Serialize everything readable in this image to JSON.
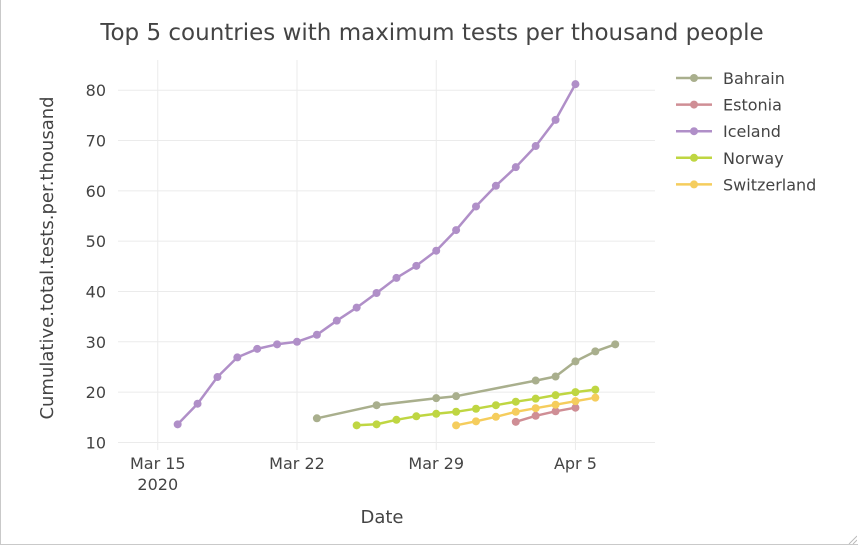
{
  "chart_data": {
    "type": "line",
    "title": "Top 5 countries with maximum tests per thousand people",
    "xlabel": "Date",
    "ylabel": "Cumulative.total.tests.per.thousand",
    "x_ticks": [
      {
        "date": "2020-03-15",
        "label": "Mar 15",
        "sublabel": "2020"
      },
      {
        "date": "2020-03-22",
        "label": "Mar 22"
      },
      {
        "date": "2020-03-29",
        "label": "Mar 29"
      },
      {
        "date": "2020-04-05",
        "label": "Apr 5"
      }
    ],
    "y_ticks": [
      10,
      20,
      30,
      40,
      50,
      60,
      70,
      80
    ],
    "xlim": [
      "2020-03-13",
      "2020-04-09"
    ],
    "ylim": [
      8.5,
      86
    ],
    "grid": true,
    "legend_position": "right",
    "series": [
      {
        "name": "Bahrain",
        "color": "#a9af8d",
        "points": [
          [
            "2020-03-23",
            14.8
          ],
          [
            "2020-03-26",
            17.4
          ],
          [
            "2020-03-29",
            18.8
          ],
          [
            "2020-03-30",
            19.2
          ],
          [
            "2020-04-03",
            22.3
          ],
          [
            "2020-04-04",
            23.1
          ],
          [
            "2020-04-05",
            26.1
          ],
          [
            "2020-04-06",
            28.1
          ],
          [
            "2020-04-07",
            29.5
          ]
        ]
      },
      {
        "name": "Estonia",
        "color": "#cf8e95",
        "points": [
          [
            "2020-04-02",
            14.1
          ],
          [
            "2020-04-03",
            15.3
          ],
          [
            "2020-04-04",
            16.2
          ],
          [
            "2020-04-05",
            16.9
          ]
        ]
      },
      {
        "name": "Iceland",
        "color": "#b08fc8",
        "points": [
          [
            "2020-03-16",
            13.6
          ],
          [
            "2020-03-17",
            17.7
          ],
          [
            "2020-03-18",
            23.0
          ],
          [
            "2020-03-19",
            26.9
          ],
          [
            "2020-03-20",
            28.6
          ],
          [
            "2020-03-21",
            29.5
          ],
          [
            "2020-03-22",
            30.0
          ],
          [
            "2020-03-23",
            31.4
          ],
          [
            "2020-03-24",
            34.2
          ],
          [
            "2020-03-25",
            36.8
          ],
          [
            "2020-03-26",
            39.7
          ],
          [
            "2020-03-27",
            42.7
          ],
          [
            "2020-03-28",
            45.1
          ],
          [
            "2020-03-29",
            48.1
          ],
          [
            "2020-03-30",
            52.2
          ],
          [
            "2020-03-31",
            56.9
          ],
          [
            "2020-04-01",
            61.0
          ],
          [
            "2020-04-02",
            64.7
          ],
          [
            "2020-04-03",
            68.9
          ],
          [
            "2020-04-04",
            74.1
          ],
          [
            "2020-04-05",
            81.2
          ]
        ]
      },
      {
        "name": "Norway",
        "color": "#bfd642",
        "points": [
          [
            "2020-03-25",
            13.4
          ],
          [
            "2020-03-26",
            13.6
          ],
          [
            "2020-03-27",
            14.5
          ],
          [
            "2020-03-28",
            15.2
          ],
          [
            "2020-03-29",
            15.7
          ],
          [
            "2020-03-30",
            16.1
          ],
          [
            "2020-03-31",
            16.7
          ],
          [
            "2020-04-01",
            17.4
          ],
          [
            "2020-04-02",
            18.1
          ],
          [
            "2020-04-03",
            18.7
          ],
          [
            "2020-04-04",
            19.4
          ],
          [
            "2020-04-05",
            20.0
          ],
          [
            "2020-04-06",
            20.5
          ]
        ]
      },
      {
        "name": "Switzerland",
        "color": "#f5cd5d",
        "points": [
          [
            "2020-03-30",
            13.4
          ],
          [
            "2020-03-31",
            14.2
          ],
          [
            "2020-04-01",
            15.1
          ],
          [
            "2020-04-02",
            16.1
          ],
          [
            "2020-04-03",
            16.8
          ],
          [
            "2020-04-04",
            17.5
          ],
          [
            "2020-04-05",
            18.2
          ],
          [
            "2020-04-06",
            18.9
          ]
        ]
      }
    ]
  }
}
